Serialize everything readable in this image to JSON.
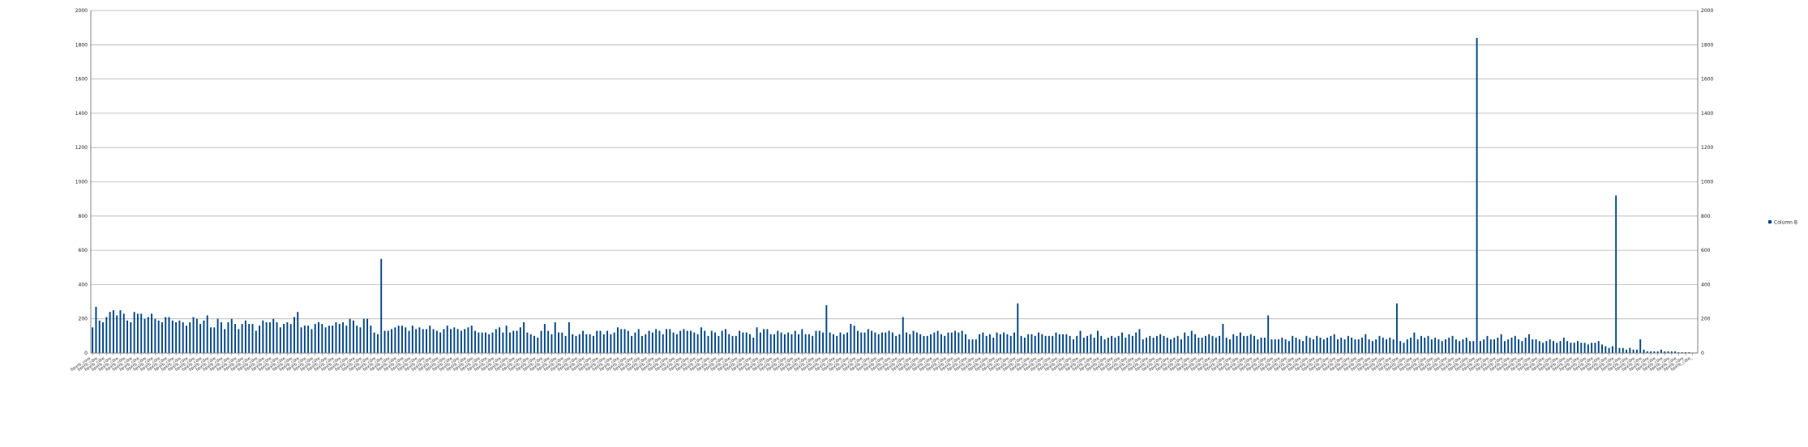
{
  "colors": {
    "series": "#004586",
    "grid": "#b3b3b3",
    "axis": "#808080"
  },
  "chart_data": {
    "type": "bar",
    "title": "",
    "xlabel": "",
    "ylabel": "",
    "ylim": [
      0,
      2000
    ],
    "yticks": [
      0,
      200,
      400,
      600,
      800,
      1000,
      1200,
      1400,
      1600,
      1800,
      2000
    ],
    "grid": true,
    "legend_position": "right",
    "category_label_prefix": "bpxrb_core_",
    "series": [
      {
        "name": "Column B",
        "values": [
          150,
          270,
          190,
          180,
          210,
          240,
          250,
          220,
          250,
          230,
          190,
          180,
          240,
          230,
          230,
          200,
          210,
          230,
          200,
          190,
          180,
          210,
          210,
          190,
          180,
          190,
          180,
          160,
          180,
          210,
          200,
          170,
          190,
          220,
          150,
          150,
          200,
          180,
          140,
          180,
          200,
          170,
          140,
          170,
          190,
          170,
          170,
          130,
          160,
          190,
          180,
          180,
          200,
          180,
          150,
          170,
          180,
          170,
          210,
          240,
          150,
          160,
          160,
          140,
          170,
          180,
          170,
          150,
          160,
          160,
          180,
          170,
          180,
          160,
          200,
          190,
          160,
          150,
          200,
          200,
          160,
          120,
          110,
          550,
          130,
          130,
          140,
          150,
          160,
          160,
          150,
          130,
          160,
          140,
          150,
          140,
          140,
          160,
          140,
          130,
          120,
          140,
          160,
          140,
          150,
          140,
          130,
          140,
          150,
          160,
          130,
          120,
          120,
          120,
          110,
          120,
          140,
          150,
          120,
          160,
          120,
          130,
          130,
          150,
          180,
          120,
          110,
          100,
          90,
          130,
          170,
          130,
          110,
          180,
          120,
          120,
          100,
          180,
          110,
          100,
          110,
          130,
          110,
          110,
          100,
          130,
          130,
          110,
          130,
          110,
          120,
          150,
          140,
          140,
          130,
          100,
          120,
          140,
          100,
          110,
          130,
          120,
          140,
          130,
          110,
          140,
          140,
          120,
          110,
          130,
          140,
          130,
          130,
          120,
          110,
          150,
          130,
          100,
          130,
          120,
          100,
          130,
          140,
          110,
          100,
          100,
          130,
          120,
          120,
          110,
          90,
          150,
          120,
          140,
          140,
          110,
          110,
          130,
          120,
          110,
          120,
          110,
          130,
          110,
          140,
          110,
          110,
          100,
          130,
          130,
          120,
          280,
          120,
          110,
          100,
          120,
          110,
          120,
          170,
          160,
          130,
          120,
          120,
          140,
          130,
          120,
          110,
          120,
          120,
          130,
          120,
          100,
          110,
          210,
          120,
          110,
          130,
          120,
          110,
          100,
          100,
          110,
          120,
          130,
          110,
          100,
          120,
          120,
          130,
          120,
          130,
          110,
          80,
          80,
          80,
          110,
          120,
          100,
          110,
          90,
          120,
          110,
          120,
          110,
          100,
          120,
          290,
          100,
          90,
          110,
          110,
          100,
          120,
          110,
          100,
          100,
          100,
          120,
          110,
          110,
          110,
          100,
          80,
          100,
          130,
          90,
          100,
          110,
          90,
          130,
          100,
          80,
          90,
          100,
          90,
          100,
          120,
          90,
          110,
          100,
          120,
          140,
          80,
          90,
          100,
          90,
          100,
          110,
          100,
          90,
          80,
          90,
          100,
          80,
          120,
          100,
          130,
          110,
          90,
          90,
          100,
          110,
          100,
          90,
          100,
          170,
          90,
          80,
          110,
          100,
          120,
          100,
          100,
          110,
          100,
          80,
          90,
          90,
          220,
          80,
          80,
          80,
          90,
          80,
          70,
          100,
          90,
          80,
          70,
          100,
          90,
          80,
          100,
          90,
          80,
          90,
          100,
          110,
          80,
          90,
          80,
          100,
          90,
          80,
          80,
          90,
          110,
          80,
          70,
          80,
          100,
          90,
          80,
          90,
          80,
          290,
          70,
          60,
          80,
          90,
          120,
          80,
          100,
          90,
          100,
          80,
          90,
          80,
          70,
          80,
          90,
          100,
          80,
          70,
          80,
          90,
          70,
          70,
          1840,
          70,
          80,
          100,
          80,
          80,
          90,
          110,
          70,
          80,
          90,
          100,
          80,
          70,
          90,
          110,
          80,
          80,
          70,
          60,
          70,
          80,
          70,
          60,
          70,
          90,
          70,
          60,
          60,
          70,
          60,
          60,
          50,
          60,
          60,
          70,
          50,
          40,
          30,
          40,
          920,
          30,
          30,
          20,
          30,
          20,
          20,
          80,
          20,
          10,
          10,
          10,
          10,
          20,
          10,
          10,
          10,
          10,
          5,
          5,
          5,
          5,
          3,
          3
        ]
      }
    ]
  }
}
